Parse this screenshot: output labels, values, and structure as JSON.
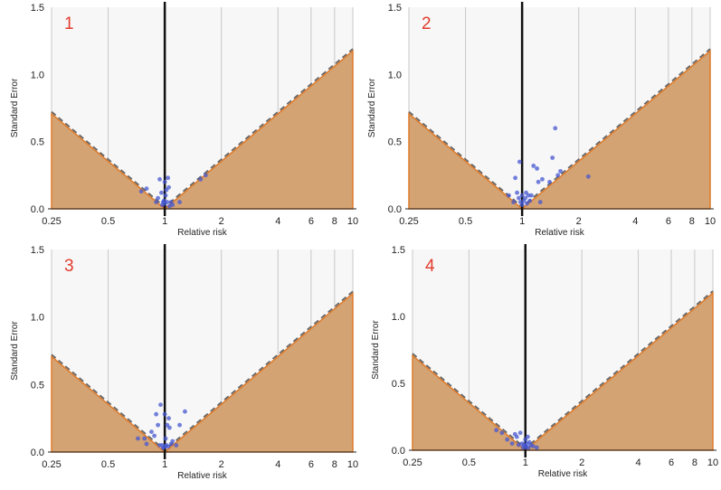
{
  "colors": {
    "background": "#f7f7f7",
    "gridline": "#c8c8c8",
    "fill": "#d4a373",
    "fill_edge": "#de7a2a",
    "dashed": "#666666",
    "reference": "#111111",
    "points": "#4657d0",
    "panel_number": "#e23b2c"
  },
  "chart_data": [
    {
      "type": "scatter",
      "panel_label": "1",
      "xlabel": "Relative risk",
      "ylabel": "Standard Error",
      "x_scale": "log",
      "xlim": [
        0.25,
        10
      ],
      "ylim": [
        0,
        1.5
      ],
      "x_ticks": [
        "0.25",
        "0.5",
        "1",
        "2",
        "4",
        "6",
        "8",
        "10"
      ],
      "y_ticks": [
        "0.0",
        "0.5",
        "1.0",
        "1.5"
      ],
      "grid": true,
      "funnel_centre": 1,
      "points": [
        [
          0.75,
          0.13
        ],
        [
          0.8,
          0.15
        ],
        [
          0.9,
          0.05
        ],
        [
          0.92,
          0.08
        ],
        [
          0.94,
          0.22
        ],
        [
          0.96,
          0.12
        ],
        [
          0.97,
          0.03
        ],
        [
          0.98,
          0.05
        ],
        [
          0.99,
          0.06
        ],
        [
          1.0,
          0.2
        ],
        [
          1.0,
          0.04
        ],
        [
          1.01,
          0.1
        ],
        [
          1.02,
          0.14
        ],
        [
          1.03,
          0.05
        ],
        [
          1.04,
          0.23
        ],
        [
          1.05,
          0.16
        ],
        [
          1.06,
          0.02
        ],
        [
          1.08,
          0.05
        ],
        [
          1.1,
          0.03
        ],
        [
          1.2,
          0.05
        ],
        [
          1.55,
          0.22
        ],
        [
          1.65,
          0.25
        ]
      ]
    },
    {
      "type": "scatter",
      "panel_label": "2",
      "xlabel": "Relative risk",
      "ylabel": "Standard Error",
      "x_scale": "log",
      "xlim": [
        0.25,
        10
      ],
      "ylim": [
        0,
        1.5
      ],
      "x_ticks": [
        "0.25",
        "0.5",
        "1",
        "2",
        "4",
        "6",
        "8",
        "10"
      ],
      "y_ticks": [
        "0.0",
        "0.5",
        "1.0",
        "1.5"
      ],
      "grid": true,
      "funnel_centre": 1,
      "points": [
        [
          0.85,
          0.1
        ],
        [
          0.9,
          0.05
        ],
        [
          0.92,
          0.23
        ],
        [
          0.94,
          0.12
        ],
        [
          0.96,
          0.08
        ],
        [
          0.97,
          0.35
        ],
        [
          0.98,
          0.05
        ],
        [
          1.0,
          0.03
        ],
        [
          1.0,
          0.1
        ],
        [
          1.02,
          0.06
        ],
        [
          1.04,
          0.08
        ],
        [
          1.05,
          0.12
        ],
        [
          1.06,
          0.04
        ],
        [
          1.08,
          0.1
        ],
        [
          1.1,
          0.06
        ],
        [
          1.12,
          0.1
        ],
        [
          1.15,
          0.32
        ],
        [
          1.2,
          0.3
        ],
        [
          1.22,
          0.2
        ],
        [
          1.25,
          0.05
        ],
        [
          1.28,
          0.22
        ],
        [
          1.4,
          0.2
        ],
        [
          1.45,
          0.38
        ],
        [
          1.5,
          0.6
        ],
        [
          1.55,
          0.25
        ],
        [
          1.6,
          0.28
        ],
        [
          2.25,
          0.24
        ]
      ]
    },
    {
      "type": "scatter",
      "panel_label": "3",
      "xlabel": "Relative risk",
      "ylabel": "Standard Error",
      "x_scale": "log",
      "xlim": [
        0.25,
        10
      ],
      "ylim": [
        0,
        1.5
      ],
      "x_ticks": [
        "0.25",
        "0.5",
        "1",
        "2",
        "4",
        "6",
        "8",
        "10"
      ],
      "y_ticks": [
        "0.0",
        "0.5",
        "1.0",
        "1.5"
      ],
      "grid": true,
      "funnel_centre": 1,
      "points": [
        [
          0.72,
          0.1
        ],
        [
          0.78,
          0.1
        ],
        [
          0.8,
          0.06
        ],
        [
          0.85,
          0.15
        ],
        [
          0.88,
          0.12
        ],
        [
          0.9,
          0.28
        ],
        [
          0.92,
          0.2
        ],
        [
          0.94,
          0.05
        ],
        [
          0.95,
          0.35
        ],
        [
          0.97,
          0.05
        ],
        [
          0.98,
          0.03
        ],
        [
          1.0,
          0.04
        ],
        [
          1.0,
          0.28
        ],
        [
          1.01,
          0.1
        ],
        [
          1.02,
          0.05
        ],
        [
          1.03,
          0.2
        ],
        [
          1.04,
          0.04
        ],
        [
          1.05,
          0.25
        ],
        [
          1.06,
          0.18
        ],
        [
          1.08,
          0.06
        ],
        [
          1.1,
          0.08
        ],
        [
          1.15,
          0.05
        ],
        [
          1.2,
          0.2
        ],
        [
          1.28,
          0.3
        ]
      ]
    },
    {
      "type": "scatter",
      "panel_label": "4",
      "xlabel": "Relative risk",
      "ylabel": "Standard Error",
      "x_scale": "log",
      "xlim": [
        0.25,
        10
      ],
      "ylim": [
        0,
        1.5
      ],
      "x_ticks": [
        "0.25",
        "0.5",
        "1",
        "2",
        "4",
        "6",
        "8",
        "10"
      ],
      "y_ticks": [
        "0.0",
        "0.5",
        "1.0",
        "1.5"
      ],
      "grid": true,
      "funnel_centre": 1,
      "points": [
        [
          0.7,
          0.15
        ],
        [
          0.75,
          0.13
        ],
        [
          0.8,
          0.08
        ],
        [
          0.85,
          0.05
        ],
        [
          0.88,
          0.12
        ],
        [
          0.9,
          0.1
        ],
        [
          0.92,
          0.04
        ],
        [
          0.94,
          0.13
        ],
        [
          0.96,
          0.05
        ],
        [
          0.97,
          0.02
        ],
        [
          0.98,
          0.04
        ],
        [
          1.0,
          0.03
        ],
        [
          1.0,
          0.08
        ],
        [
          1.01,
          0.02
        ],
        [
          1.02,
          0.05
        ],
        [
          1.03,
          0.1
        ],
        [
          1.04,
          0.02
        ],
        [
          1.05,
          0.06
        ],
        [
          1.07,
          0.04
        ],
        [
          1.1,
          0.03
        ],
        [
          1.15,
          0.02
        ]
      ]
    }
  ]
}
